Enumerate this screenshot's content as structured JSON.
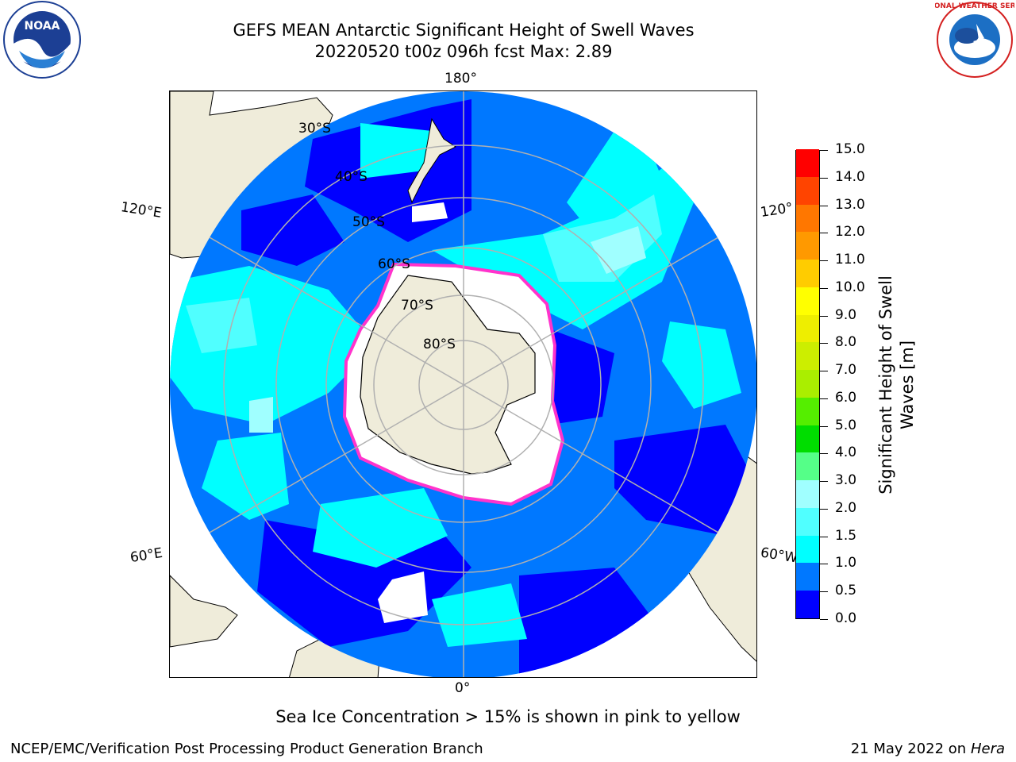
{
  "title": {
    "line1": "GEFS MEAN Antarctic Significant Height of Swell Waves",
    "line2": "20220520 t00z 096h fcst   Max: 2.89"
  },
  "map": {
    "projection": "south-polar-stereographic",
    "lon_labels": {
      "top": "180°",
      "bottom": "0°",
      "left_upper": "120°E",
      "left_lower": "60°E",
      "right_upper": "120°",
      "right_lower": "60°W"
    },
    "lat_labels": [
      "30°S",
      "40°S",
      "50°S",
      "60°S",
      "70°S",
      "80°S"
    ],
    "colors": {
      "land": "#efecda",
      "ice": "#ffffff",
      "ice_edge": "#ff33cc",
      "grid": "#b0b0b0"
    }
  },
  "colorbar": {
    "ticks": [
      "15.0",
      "14.0",
      "13.0",
      "12.0",
      "11.0",
      "10.0",
      "9.0",
      "8.0",
      "7.0",
      "6.0",
      "5.0",
      "4.0",
      "3.0",
      "2.0",
      "1.5",
      "1.0",
      "0.5",
      "0.0"
    ],
    "boundaries": [
      0.0,
      0.5,
      1.0,
      1.5,
      2.0,
      3.0,
      4.0,
      5.0,
      6.0,
      7.0,
      8.0,
      9.0,
      10.0,
      11.0,
      12.0,
      13.0,
      14.0,
      15.0
    ],
    "colors": [
      "#0000ff",
      "#0078ff",
      "#00ffff",
      "#50ffff",
      "#a0ffff",
      "#55ff88",
      "#00dd00",
      "#55ee00",
      "#aaee00",
      "#ccee00",
      "#eeee00",
      "#ffff00",
      "#ffcc00",
      "#ff9900",
      "#ff7700",
      "#ff4400",
      "#ff0000"
    ],
    "label_line1": "Significant Height of Swell",
    "label_line2": "Waves [m]"
  },
  "notes": {
    "sea_ice": "Sea Ice Concentration > 15% is shown in pink to yellow",
    "credit": "NCEP/EMC/Verification Post Processing Product Generation Branch",
    "date": "21 May 2022 on",
    "machine": "Hera"
  },
  "logos": {
    "left": "NOAA",
    "right": "NATIONAL WEATHER SERVICE"
  }
}
